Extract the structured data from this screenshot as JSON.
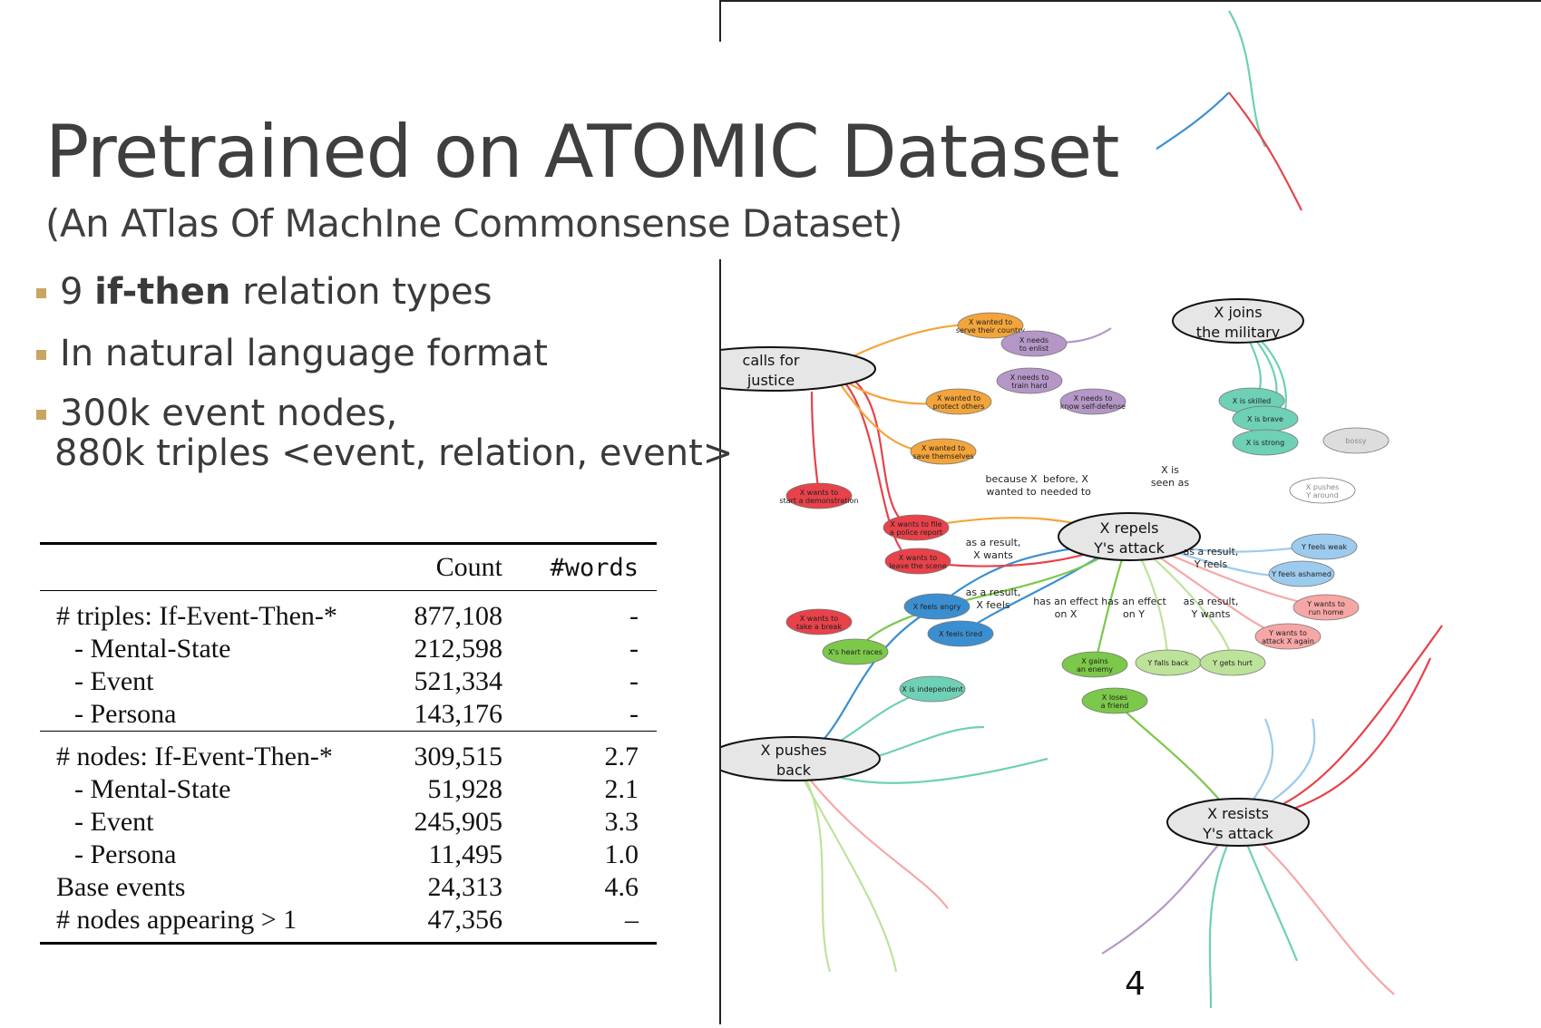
{
  "title": "Pretrained on ATOMIC Dataset",
  "subtitle": "(An ATlas Of MachIne Commonsense Dataset)",
  "bullets": [
    {
      "pre": "9 ",
      "bold": "if-then",
      "post": " relation types"
    },
    {
      "pre": "In natural language format",
      "bold": "",
      "post": ""
    },
    {
      "pre": "300k event nodes,",
      "bold": "",
      "post": "",
      "line2": "880k triples  <event, relation, event>"
    }
  ],
  "table": {
    "headers": [
      "",
      "Count",
      "#words"
    ],
    "groups": [
      {
        "rows": [
          {
            "label": "# triples: If-Event-Then-*",
            "count": "877,108",
            "words": "-"
          },
          {
            "label": "- Mental-State",
            "count": "212,598",
            "words": "-"
          },
          {
            "label": "- Event",
            "count": "521,334",
            "words": "-"
          },
          {
            "label": "- Persona",
            "count": "143,176",
            "words": "-"
          }
        ]
      },
      {
        "rows": [
          {
            "label": "# nodes: If-Event-Then-*",
            "count": "309,515",
            "words": "2.7"
          },
          {
            "label": "- Mental-State",
            "count": "51,928",
            "words": "2.1"
          },
          {
            "label": "- Event",
            "count": "245,905",
            "words": "3.3"
          },
          {
            "label": "- Persona",
            "count": "11,495",
            "words": "1.0"
          },
          {
            "label": "Base events",
            "count": "24,313",
            "words": "4.6"
          },
          {
            "label": "# nodes appearing > 1",
            "count": "47,356",
            "words": "–"
          }
        ]
      }
    ]
  },
  "slide_number": "4",
  "graph": {
    "main_nodes": [
      "calls for justice",
      "X joins the military",
      "X repels Y's attack",
      "X pushes back",
      "X resists Y's attack"
    ],
    "edge_labels": [
      "as a result, X wants",
      "as a result, X feels",
      "because X wanted to",
      "before, X needed to",
      "X is seen as",
      "has an effect on X",
      "has an effect on Y",
      "as a result, Y feels",
      "as a result, Y wants"
    ],
    "small_nodes": [
      {
        "text": "X wants to file a police report",
        "color": "#e8424a"
      },
      {
        "text": "X wants to leave the scene",
        "color": "#e8424a"
      },
      {
        "text": "X wants to start a demonstration",
        "color": "#e8424a"
      },
      {
        "text": "X wanted to serve their country",
        "color": "#f3a53b"
      },
      {
        "text": "X wanted to protect others",
        "color": "#f3a53b"
      },
      {
        "text": "X wanted to save themselves",
        "color": "#f3a53b"
      },
      {
        "text": "X needs to enlist",
        "color": "#b497c6"
      },
      {
        "text": "X needs to train hard",
        "color": "#b497c6"
      },
      {
        "text": "X needs to know self-defense",
        "color": "#b497c6"
      },
      {
        "text": "X is skilled",
        "color": "#6ed0b4"
      },
      {
        "text": "X is brave",
        "color": "#6ed0b4"
      },
      {
        "text": "X is strong",
        "color": "#6ed0b4"
      },
      {
        "text": "X is independent",
        "color": "#6ed0b4"
      },
      {
        "text": "X feels angry",
        "color": "#3b8fd0"
      },
      {
        "text": "X feels tired",
        "color": "#3b8fd0"
      },
      {
        "text": "Y feels weak",
        "color": "#9ccbee"
      },
      {
        "text": "Y feels ashamed",
        "color": "#9ccbee"
      },
      {
        "text": "Y wants to run home",
        "color": "#f7a6a6"
      },
      {
        "text": "Y wants to attack X again",
        "color": "#f7a6a6"
      },
      {
        "text": "X's heart races",
        "color": "#7cc84a"
      },
      {
        "text": "X gains an enemy",
        "color": "#7cc84a"
      },
      {
        "text": "X loses a friend",
        "color": "#7cc84a"
      },
      {
        "text": "Y falls back",
        "color": "#bde39a"
      },
      {
        "text": "Y gets hurt",
        "color": "#bde39a"
      },
      {
        "text": "X wants to take a break",
        "color": "#e8424a"
      },
      {
        "text": "bossy",
        "color": "#dddddd"
      },
      {
        "text": "X pushes Y around",
        "color": "#ffffff"
      }
    ]
  }
}
